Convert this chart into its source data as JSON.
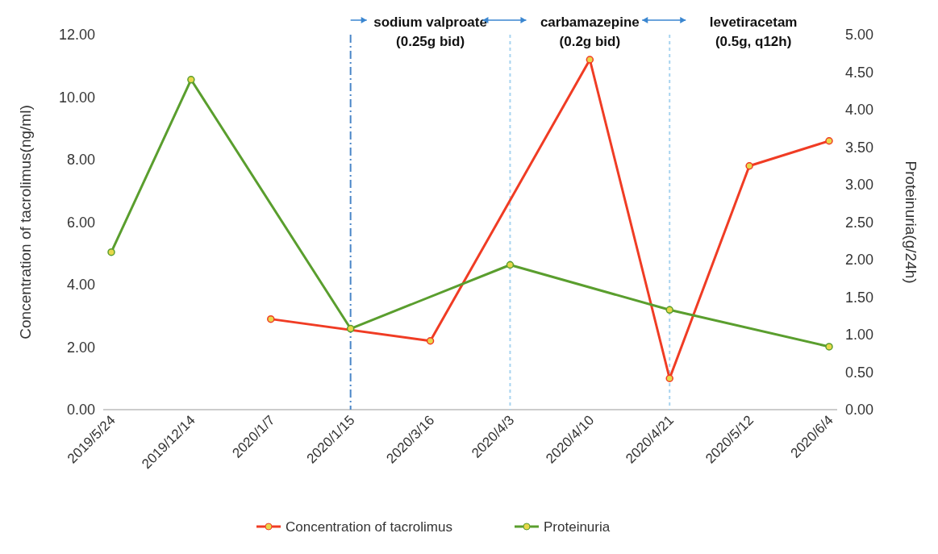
{
  "chart_data": {
    "type": "line",
    "categories": [
      "2019/5/24",
      "2019/12/14",
      "2020/1/7",
      "2020/1/15",
      "2020/3/16",
      "2020/4/3",
      "2020/4/10",
      "2020/4/21",
      "2020/5/12",
      "2020/6/4"
    ],
    "ylabel": "Concentration of tacrolimus(ng/ml)",
    "y2label": "Proteinuria(g/24h)",
    "ylim": [
      0,
      12
    ],
    "yticks": [
      {
        "value": 0,
        "label": "0.00"
      },
      {
        "value": 2,
        "label": "2.00"
      },
      {
        "value": 4,
        "label": "4.00"
      },
      {
        "value": 6,
        "label": "6.00"
      },
      {
        "value": 8,
        "label": "8.00"
      },
      {
        "value": 10,
        "label": "10.00"
      },
      {
        "value": 12,
        "label": "12.00"
      }
    ],
    "y2lim": [
      0,
      5
    ],
    "y2ticks": [
      {
        "value": 0,
        "label": "0.00"
      },
      {
        "value": 0.5,
        "label": "0.50"
      },
      {
        "value": 1,
        "label": "1.00"
      },
      {
        "value": 1.5,
        "label": "1.50"
      },
      {
        "value": 2,
        "label": "2.00"
      },
      {
        "value": 2.5,
        "label": "2.50"
      },
      {
        "value": 3,
        "label": "3.00"
      },
      {
        "value": 3.5,
        "label": "3.50"
      },
      {
        "value": 4,
        "label": "4.00"
      },
      {
        "value": 4.5,
        "label": "4.50"
      },
      {
        "value": 5,
        "label": "5.00"
      }
    ],
    "series": [
      {
        "name": "Concentration of tacrolimus",
        "color": "#f03c24",
        "x": [
          "2020/1/7",
          "2020/3/16",
          "2020/4/10",
          "2020/4/21",
          "2020/5/12",
          "2020/6/4"
        ],
        "values": [
          2.9,
          2.2,
          11.2,
          1.0,
          7.8,
          8.6
        ]
      },
      {
        "name": "Proteinuria",
        "color": "#5a9e2e",
        "axis": "y2",
        "x": [
          "2019/5/24",
          "2019/12/14",
          "2020/1/15",
          "2020/4/3",
          "2020/4/21",
          "2020/6/4"
        ],
        "values": [
          2.1,
          4.4,
          1.08,
          1.93,
          1.33,
          0.84
        ]
      }
    ],
    "ref_lines": [
      {
        "axis": "x",
        "value": "2020/1/15",
        "color": "#4a86c8",
        "line_style": "dashdot"
      },
      {
        "axis": "x",
        "value": "2020/4/3",
        "color": "#a8d4f0",
        "line_style": "dashed"
      },
      {
        "axis": "x",
        "value": "2020/4/21",
        "color": "#a8d4f0",
        "line_style": "dashed"
      }
    ],
    "annotations": [
      "sodium valproate\n(0.25g bid)",
      "carbamazepine\n(0.2g bid)",
      "levetiracetam\n(0.5g, q12h)"
    ],
    "marker": "circle",
    "legend": "bottom",
    "grid": false
  }
}
